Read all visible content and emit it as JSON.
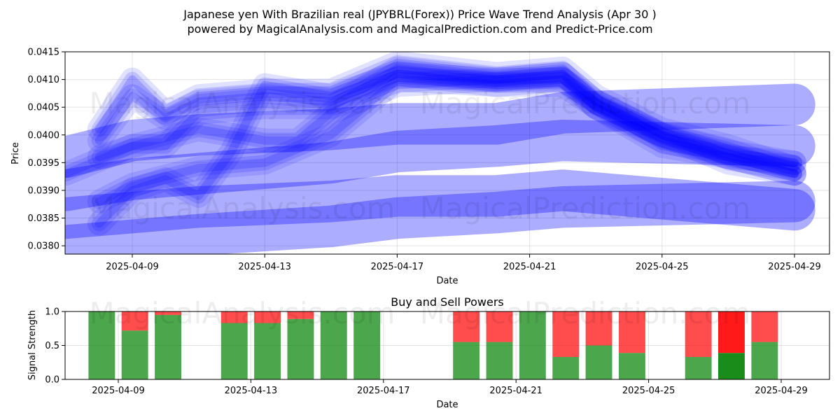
{
  "header": {
    "title_line1": "Japanese yen With Brazilian real (JPYBRL(Forex)) Price Wave Trend Analysis (Apr 30 )",
    "title_line2": "powered by MagicalAnalysis.com and MagicalPrediction.com and Predict-Price.com"
  },
  "watermarks": [
    "MagicalAnalysis.com",
    "MagicalPrediction.com"
  ],
  "colors": {
    "wave": "#0000ff",
    "buy": "#008000",
    "sell": "#ff0000"
  },
  "chart_data": [
    {
      "type": "line",
      "title": "",
      "xlabel": "Date",
      "ylabel": "Price",
      "xlim": [
        "2025-04-07",
        "2025-04-30"
      ],
      "ylim": [
        0.03785,
        0.0415
      ],
      "grid": true,
      "xticks": [
        "2025-04-09",
        "2025-04-13",
        "2025-04-17",
        "2025-04-21",
        "2025-04-25",
        "2025-04-29"
      ],
      "yticks": [
        "0.0380",
        "0.0385",
        "0.0390",
        "0.0395",
        "0.0400",
        "0.0405",
        "0.0410",
        "0.0415"
      ],
      "bands": [
        {
          "x": [
            "2025-04-07",
            "2025-04-09",
            "2025-04-11",
            "2025-04-15",
            "2025-04-17",
            "2025-04-20",
            "2025-04-22",
            "2025-04-29"
          ],
          "y": [
            0.0396,
            0.0399,
            0.04,
            0.0401,
            0.0402,
            0.0402,
            0.0404,
            0.04055
          ],
          "width": 0.00075
        },
        {
          "x": [
            "2025-04-07",
            "2025-04-09",
            "2025-04-11",
            "2025-04-15",
            "2025-04-17",
            "2025-04-20",
            "2025-04-22",
            "2025-04-29"
          ],
          "y": [
            0.039,
            0.0392,
            0.0393,
            0.0395,
            0.0397,
            0.0398,
            0.0399,
            0.0398
          ],
          "width": 0.00075
        },
        {
          "x": [
            "2025-04-07",
            "2025-04-09",
            "2025-04-11",
            "2025-04-15",
            "2025-04-17",
            "2025-04-20",
            "2025-04-22",
            "2025-04-29"
          ],
          "y": [
            0.0385,
            0.0386,
            0.0387,
            0.0388,
            0.0389,
            0.0389,
            0.039,
            0.03865
          ],
          "width": 0.00075
        },
        {
          "x": [
            "2025-04-07",
            "2025-04-09",
            "2025-04-11",
            "2025-04-15",
            "2025-04-17",
            "2025-04-20",
            "2025-04-22",
            "2025-04-29"
          ],
          "y": [
            0.038,
            0.0381,
            0.0382,
            0.03835,
            0.0385,
            0.0386,
            0.0387,
            0.0388
          ],
          "width": 0.00075
        }
      ],
      "waves": [
        {
          "x": [
            "2025-04-08",
            "2025-04-09",
            "2025-04-10",
            "2025-04-11",
            "2025-04-13",
            "2025-04-15",
            "2025-04-17",
            "2025-04-20",
            "2025-04-22",
            "2025-04-23",
            "2025-04-25",
            "2025-04-27",
            "2025-04-29"
          ],
          "y": [
            0.0401,
            0.041,
            0.0404,
            0.0407,
            0.0408,
            0.0408,
            0.0413,
            0.0411,
            0.0412,
            0.0407,
            0.0401,
            0.0398,
            0.0394
          ]
        },
        {
          "x": [
            "2025-04-08",
            "2025-04-09",
            "2025-04-10",
            "2025-04-11",
            "2025-04-13",
            "2025-04-15",
            "2025-04-17",
            "2025-04-20",
            "2025-04-22",
            "2025-04-23",
            "2025-04-25",
            "2025-04-27",
            "2025-04-29"
          ],
          "y": [
            0.0399,
            0.0407,
            0.0403,
            0.0406,
            0.0407,
            0.0406,
            0.0411,
            0.041,
            0.0411,
            0.0406,
            0.04,
            0.0396,
            0.0393
          ]
        },
        {
          "x": [
            "2025-04-08",
            "2025-04-09",
            "2025-04-10",
            "2025-04-11",
            "2025-04-13",
            "2025-04-15",
            "2025-04-17",
            "2025-04-20",
            "2025-04-22",
            "2025-04-23",
            "2025-04-25",
            "2025-04-27",
            "2025-04-29"
          ],
          "y": [
            0.0396,
            0.0398,
            0.0398,
            0.0404,
            0.0405,
            0.0405,
            0.0412,
            0.041,
            0.041,
            0.0405,
            0.04,
            0.0397,
            0.0395
          ]
        },
        {
          "x": [
            "2025-04-08",
            "2025-04-09",
            "2025-04-10",
            "2025-04-11",
            "2025-04-12",
            "2025-04-13",
            "2025-04-15",
            "2025-04-17",
            "2025-04-20",
            "2025-04-22",
            "2025-04-23",
            "2025-04-25",
            "2025-04-27",
            "2025-04-29"
          ],
          "y": [
            0.0384,
            0.039,
            0.0392,
            0.0389,
            0.0397,
            0.0409,
            0.0407,
            0.0411,
            0.0409,
            0.041,
            0.0406,
            0.04,
            0.0395,
            0.0393
          ]
        },
        {
          "x": [
            "2025-04-08",
            "2025-04-09",
            "2025-04-11",
            "2025-04-13",
            "2025-04-15",
            "2025-04-17",
            "2025-04-20",
            "2025-04-22",
            "2025-04-23",
            "2025-04-25",
            "2025-04-27",
            "2025-04-29"
          ],
          "y": [
            0.0388,
            0.0391,
            0.0394,
            0.0395,
            0.04,
            0.041,
            0.0409,
            0.0409,
            0.0405,
            0.0399,
            0.0396,
            0.0393
          ]
        },
        {
          "x": [
            "2025-04-07",
            "2025-04-09",
            "2025-04-11",
            "2025-04-13",
            "2025-04-14",
            "2025-04-15",
            "2025-04-17",
            "2025-04-20",
            "2025-04-22",
            "2025-04-23",
            "2025-04-25",
            "2025-04-27",
            "2025-04-29"
          ],
          "y": [
            0.0393,
            0.0398,
            0.0401,
            0.0399,
            0.0399,
            0.0404,
            0.0409,
            0.041,
            0.0411,
            0.0405,
            0.0398,
            0.0396,
            0.0395
          ]
        }
      ]
    },
    {
      "type": "bar",
      "title": "Buy and Sell Powers",
      "xlabel": "Date",
      "ylabel": "Signal Strength",
      "ylim": [
        0,
        1
      ],
      "grid": true,
      "xticks": [
        "2025-04-09",
        "2025-04-13",
        "2025-04-17",
        "2025-04-21",
        "2025-04-25",
        "2025-04-29"
      ],
      "yticks": [
        "0.0",
        "0.5",
        "1.0"
      ],
      "categories": [
        "2025-04-08",
        "2025-04-09",
        "2025-04-10",
        "2025-04-12",
        "2025-04-13",
        "2025-04-14",
        "2025-04-15",
        "2025-04-16",
        "2025-04-19",
        "2025-04-20",
        "2025-04-21",
        "2025-04-22",
        "2025-04-23",
        "2025-04-24",
        "2025-04-26",
        "2025-04-27",
        "2025-04-28"
      ],
      "series": [
        {
          "name": "",
          "values": [
            1.0,
            0.72,
            0.95,
            0.83,
            0.83,
            0.89,
            1.0,
            1.0,
            0.55,
            0.55,
            1.0,
            0.33,
            0.5,
            0.39,
            0.33,
            0.39,
            0.55
          ]
        },
        {
          "name": "",
          "values": [
            0.0,
            0.28,
            0.05,
            0.17,
            0.17,
            0.11,
            0.0,
            0.0,
            0.45,
            0.45,
            0.0,
            0.67,
            0.5,
            0.61,
            0.67,
            0.61,
            0.45
          ]
        }
      ],
      "highlight_index": 15
    }
  ]
}
